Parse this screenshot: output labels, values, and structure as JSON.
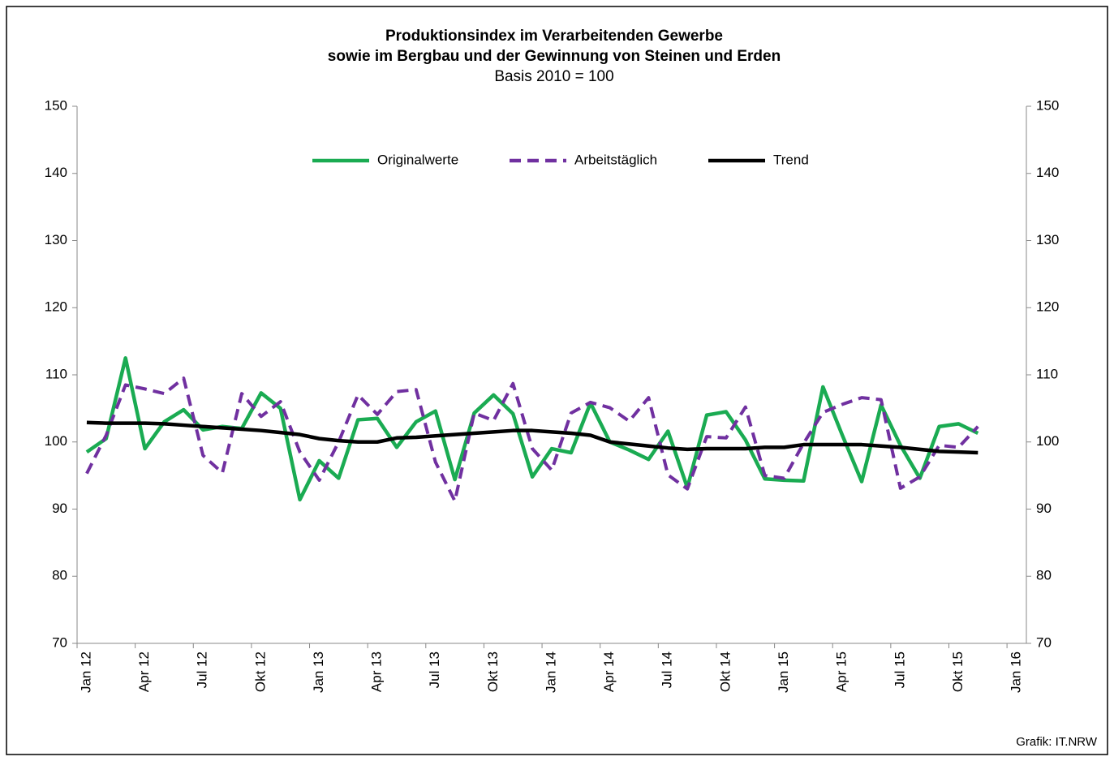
{
  "chart_data": {
    "type": "line",
    "title": [
      "Produktionsindex im Verarbeitenden Gewerbe",
      "sowie im Bergbau und der Gewinnung von Steinen und Erden"
    ],
    "subtitle": "Basis 2010 = 100",
    "source": "Grafik: IT.NRW",
    "categories": [
      "Jan 12",
      null,
      null,
      "Apr 12",
      null,
      null,
      "Jul 12",
      null,
      null,
      "Okt 12",
      null,
      null,
      "Jan 13",
      null,
      null,
      "Apr 13",
      null,
      null,
      "Jul 13",
      null,
      null,
      "Okt 13",
      null,
      null,
      "Jan 14",
      null,
      null,
      "Apr 14",
      null,
      null,
      "Jul 14",
      null,
      null,
      "Okt 14",
      null,
      null,
      "Jan 15",
      null,
      null,
      "Apr 15",
      null,
      null,
      "Jul 15",
      null,
      null,
      "Okt 15",
      null,
      null,
      "Jan 16"
    ],
    "series": [
      {
        "name": "Originalwerte",
        "color": "#1aab52",
        "dash": false,
        "values": [
          98.5,
          100.5,
          112.5,
          99,
          103,
          104.8,
          101.8,
          102.3,
          102,
          107.3,
          105,
          91.4,
          97.2,
          94.6,
          103.3,
          103.5,
          99.2,
          103,
          104.6,
          94.4,
          104.3,
          107,
          104.2,
          94.8,
          99,
          98.4,
          105.8,
          100,
          98.8,
          97.4,
          101.6,
          93.2,
          104,
          104.5,
          100.3,
          94.5,
          94.3,
          94.2,
          108.2,
          101,
          94.1,
          105.5,
          99.5,
          94.6,
          102.3,
          102.7,
          101.3,
          null,
          null
        ]
      },
      {
        "name": "Arbeitstäglich",
        "color": "#7030a0",
        "dash": true,
        "values": [
          95.3,
          101,
          108.5,
          107.9,
          107.2,
          109.5,
          98,
          95.4,
          107.2,
          103.8,
          106,
          98.5,
          94.3,
          100,
          107,
          104.1,
          107.5,
          107.8,
          97,
          91.2,
          104.3,
          103.2,
          108.7,
          99,
          95.8,
          104.3,
          105.9,
          105.1,
          103.1,
          106.6,
          95.1,
          93,
          100.8,
          100.6,
          105.2,
          95,
          94.6,
          99.8,
          104.4,
          105.6,
          106.6,
          106.3,
          93.1,
          94.8,
          99.5,
          99.2,
          102.3,
          null,
          null
        ]
      },
      {
        "name": "Trend",
        "color": "#000000",
        "dash": false,
        "values": [
          102.9,
          102.8,
          102.8,
          102.8,
          102.7,
          102.5,
          102.3,
          102.1,
          101.9,
          101.7,
          101.4,
          101.1,
          100.5,
          100.2,
          100,
          100,
          100.6,
          100.7,
          100.9,
          101.1,
          101.3,
          101.5,
          101.7,
          101.7,
          101.5,
          101.3,
          101,
          100,
          99.7,
          99.4,
          99.1,
          98.9,
          99,
          99,
          99,
          99.2,
          99.2,
          99.6,
          99.6,
          99.6,
          99.6,
          99.4,
          99.2,
          98.9,
          98.6,
          98.5,
          98.4,
          null,
          null
        ]
      }
    ],
    "ylim": [
      70,
      150
    ],
    "yticks": [
      70,
      80,
      90,
      100,
      110,
      120,
      130,
      140,
      150
    ],
    "y2lim": [
      70,
      150
    ],
    "y2ticks": [
      70,
      80,
      90,
      100,
      110,
      120,
      130,
      140,
      150
    ],
    "grid": false,
    "legend": "top"
  }
}
